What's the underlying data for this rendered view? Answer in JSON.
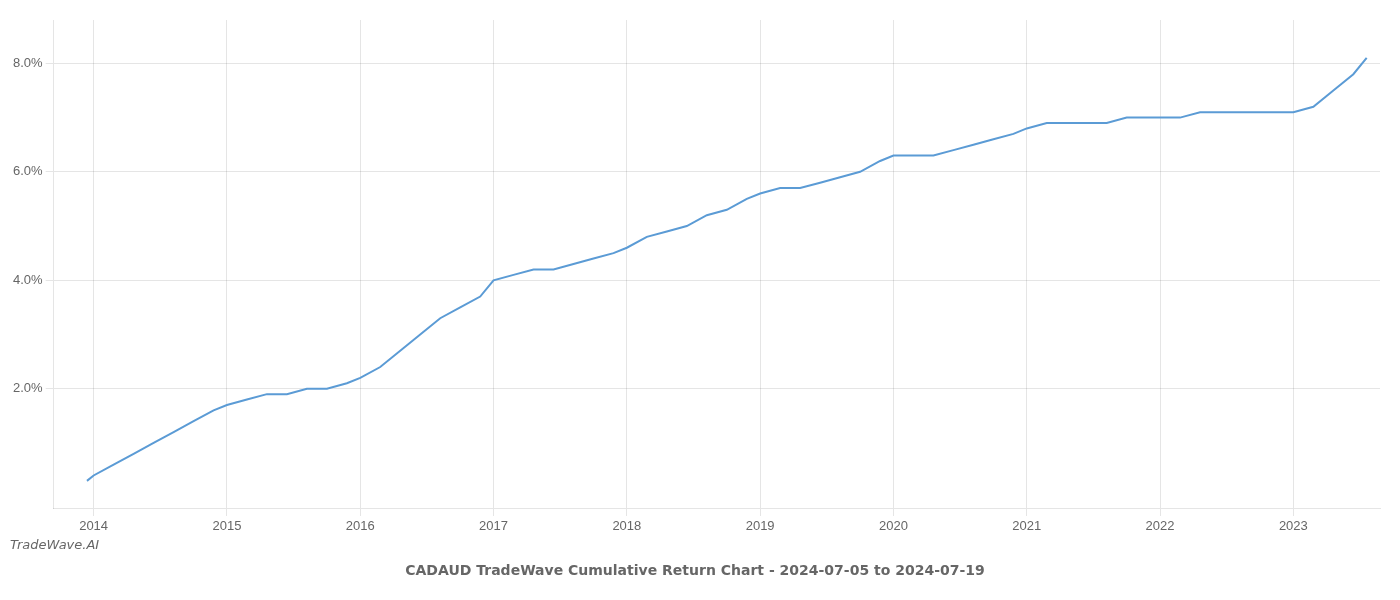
{
  "chart_data": {
    "type": "line",
    "title": "CADAUD TradeWave Cumulative Return Chart - 2024-07-05 to 2024-07-19",
    "annotations": [
      "TradeWave.AI"
    ],
    "color": "#5B9BD5",
    "grid": true,
    "x": [
      2013.95,
      2014.0,
      2014.15,
      2014.3,
      2014.45,
      2014.6,
      2014.75,
      2014.9,
      2015.0,
      2015.15,
      2015.3,
      2015.45,
      2015.6,
      2015.75,
      2015.9,
      2016.0,
      2016.15,
      2016.3,
      2016.45,
      2016.6,
      2016.75,
      2016.9,
      2017.0,
      2017.15,
      2017.3,
      2017.45,
      2017.6,
      2017.75,
      2017.9,
      2018.0,
      2018.15,
      2018.3,
      2018.45,
      2018.6,
      2018.75,
      2018.9,
      2019.0,
      2019.15,
      2019.3,
      2019.45,
      2019.6,
      2019.75,
      2019.9,
      2020.0,
      2020.15,
      2020.3,
      2020.45,
      2020.6,
      2020.75,
      2020.9,
      2021.0,
      2021.15,
      2021.3,
      2021.45,
      2021.6,
      2021.75,
      2021.9,
      2022.0,
      2022.15,
      2022.3,
      2022.45,
      2022.6,
      2022.75,
      2022.9,
      2023.0,
      2023.15,
      2023.3,
      2023.45,
      2023.55
    ],
    "values": [
      0.003,
      0.004,
      0.006,
      0.008,
      0.01,
      0.012,
      0.014,
      0.016,
      0.017,
      0.018,
      0.019,
      0.019,
      0.02,
      0.02,
      0.021,
      0.022,
      0.024,
      0.027,
      0.03,
      0.033,
      0.035,
      0.037,
      0.04,
      0.041,
      0.042,
      0.042,
      0.043,
      0.044,
      0.045,
      0.046,
      0.048,
      0.049,
      0.05,
      0.052,
      0.053,
      0.055,
      0.056,
      0.057,
      0.057,
      0.058,
      0.059,
      0.06,
      0.062,
      0.063,
      0.063,
      0.063,
      0.064,
      0.065,
      0.066,
      0.067,
      0.068,
      0.069,
      0.069,
      0.069,
      0.069,
      0.07,
      0.07,
      0.07,
      0.07,
      0.071,
      0.071,
      0.071,
      0.071,
      0.071,
      0.071,
      0.072,
      0.075,
      0.078,
      0.081
    ],
    "xlim": [
      2013.7,
      2023.65
    ],
    "xticks": [
      2014,
      2015,
      2016,
      2017,
      2018,
      2019,
      2020,
      2021,
      2022,
      2023
    ],
    "ylim": [
      -0.002,
      0.088
    ],
    "yticks": [
      {
        "value": 0.02,
        "label": "2.0%"
      },
      {
        "value": 0.04,
        "label": "4.0%"
      },
      {
        "value": 0.06,
        "label": "6.0%"
      },
      {
        "value": 0.08,
        "label": "8.0%"
      }
    ]
  }
}
